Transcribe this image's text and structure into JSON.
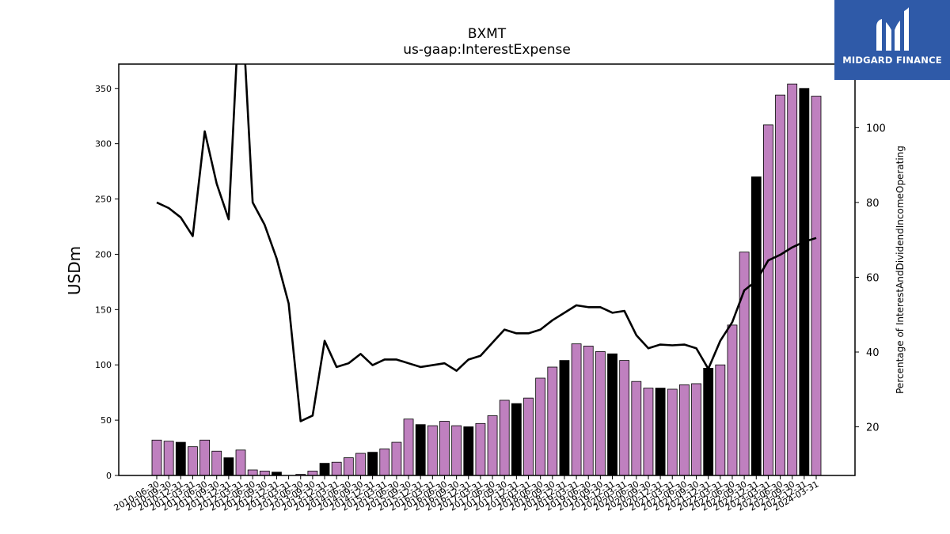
{
  "chart_data": {
    "type": "bar",
    "title": "BXMT",
    "subtitle": "us-gaap:InterestExpense",
    "ylabel": "USDm",
    "y2label": "Percentage of InterestAndDividendIncomeOperating",
    "ylim": [
      0,
      372
    ],
    "y2lim": [
      7,
      117
    ],
    "yticks": [
      0,
      50,
      100,
      150,
      200,
      250,
      300,
      350
    ],
    "y2ticks": [
      20,
      40,
      60,
      80,
      100
    ],
    "categories": [
      "2010-06-30",
      "2010-09-30",
      "2010-12-31",
      "2011-03-31",
      "2011-06-30",
      "2011-09-30",
      "2011-12-31",
      "2012-03-31",
      "2012-06-30",
      "2012-09-30",
      "2012-12-31",
      "2013-03-31",
      "2013-06-30",
      "2013-09-30",
      "2013-12-31",
      "2014-03-31",
      "2014-06-30",
      "2014-09-30",
      "2014-12-31",
      "2015-03-31",
      "2015-06-30",
      "2015-09-30",
      "2015-12-31",
      "2016-03-31",
      "2016-06-30",
      "2016-09-30",
      "2016-12-31",
      "2017-03-31",
      "2017-06-30",
      "2017-09-30",
      "2017-12-31",
      "2018-03-31",
      "2018-06-30",
      "2018-09-30",
      "2018-12-31",
      "2019-03-31",
      "2019-06-30",
      "2019-09-30",
      "2019-12-31",
      "2020-03-31",
      "2020-06-30",
      "2020-09-30",
      "2020-12-31",
      "2021-03-31",
      "2021-06-30",
      "2021-09-30",
      "2021-12-31",
      "2022-03-31",
      "2022-06-30",
      "2022-09-30",
      "2022-12-31",
      "2023-03-31",
      "2023-06-30",
      "2023-09-30",
      "2023-12-31",
      "2024-03-31"
    ],
    "series": [
      {
        "name": "",
        "type": "bar",
        "axis": "left",
        "values": [
          32,
          31,
          30,
          26,
          32,
          22,
          16,
          23,
          5,
          4,
          3,
          0,
          1,
          4,
          11,
          12,
          16,
          20,
          21,
          24,
          30,
          51,
          46,
          45,
          49,
          45,
          44,
          47,
          54,
          68,
          65,
          70,
          88,
          98,
          104,
          119,
          117,
          112,
          110,
          104,
          85,
          79,
          79,
          78,
          82,
          83,
          97,
          100,
          136,
          202,
          270,
          317,
          344,
          354,
          350,
          343
        ],
        "highlight": [
          false,
          false,
          true,
          false,
          false,
          false,
          true,
          false,
          false,
          false,
          true,
          false,
          false,
          false,
          true,
          false,
          false,
          false,
          true,
          false,
          false,
          false,
          true,
          false,
          false,
          false,
          true,
          false,
          false,
          false,
          true,
          false,
          false,
          false,
          true,
          false,
          false,
          false,
          true,
          false,
          false,
          false,
          true,
          false,
          false,
          false,
          true,
          false,
          false,
          false,
          true,
          false,
          false,
          false,
          true,
          false
        ]
      },
      {
        "name": "",
        "type": "line",
        "axis": "right",
        "values": [
          80,
          78.5,
          76,
          71,
          99,
          85,
          75.5,
          140,
          80,
          74,
          65,
          53,
          21.5,
          23,
          43,
          36,
          37,
          39.5,
          36.5,
          38,
          38,
          37,
          36,
          36.5,
          37,
          35,
          38,
          39,
          42.5,
          46,
          45,
          45,
          46,
          48.5,
          50.5,
          52.5,
          52,
          52,
          50.5,
          51,
          44.5,
          41,
          42,
          41.8,
          42,
          41,
          35.5,
          43,
          48,
          56.5,
          59,
          64.5,
          66,
          68,
          69.5,
          70.5
        ]
      }
    ],
    "colors": {
      "bar": "#bf80bf",
      "bar_highlight": "#000000",
      "line": "#000000"
    },
    "grid": false,
    "legend": "none"
  },
  "logo": {
    "text": "MIDGARD FINANCE",
    "bg": "#2f5aa8"
  }
}
